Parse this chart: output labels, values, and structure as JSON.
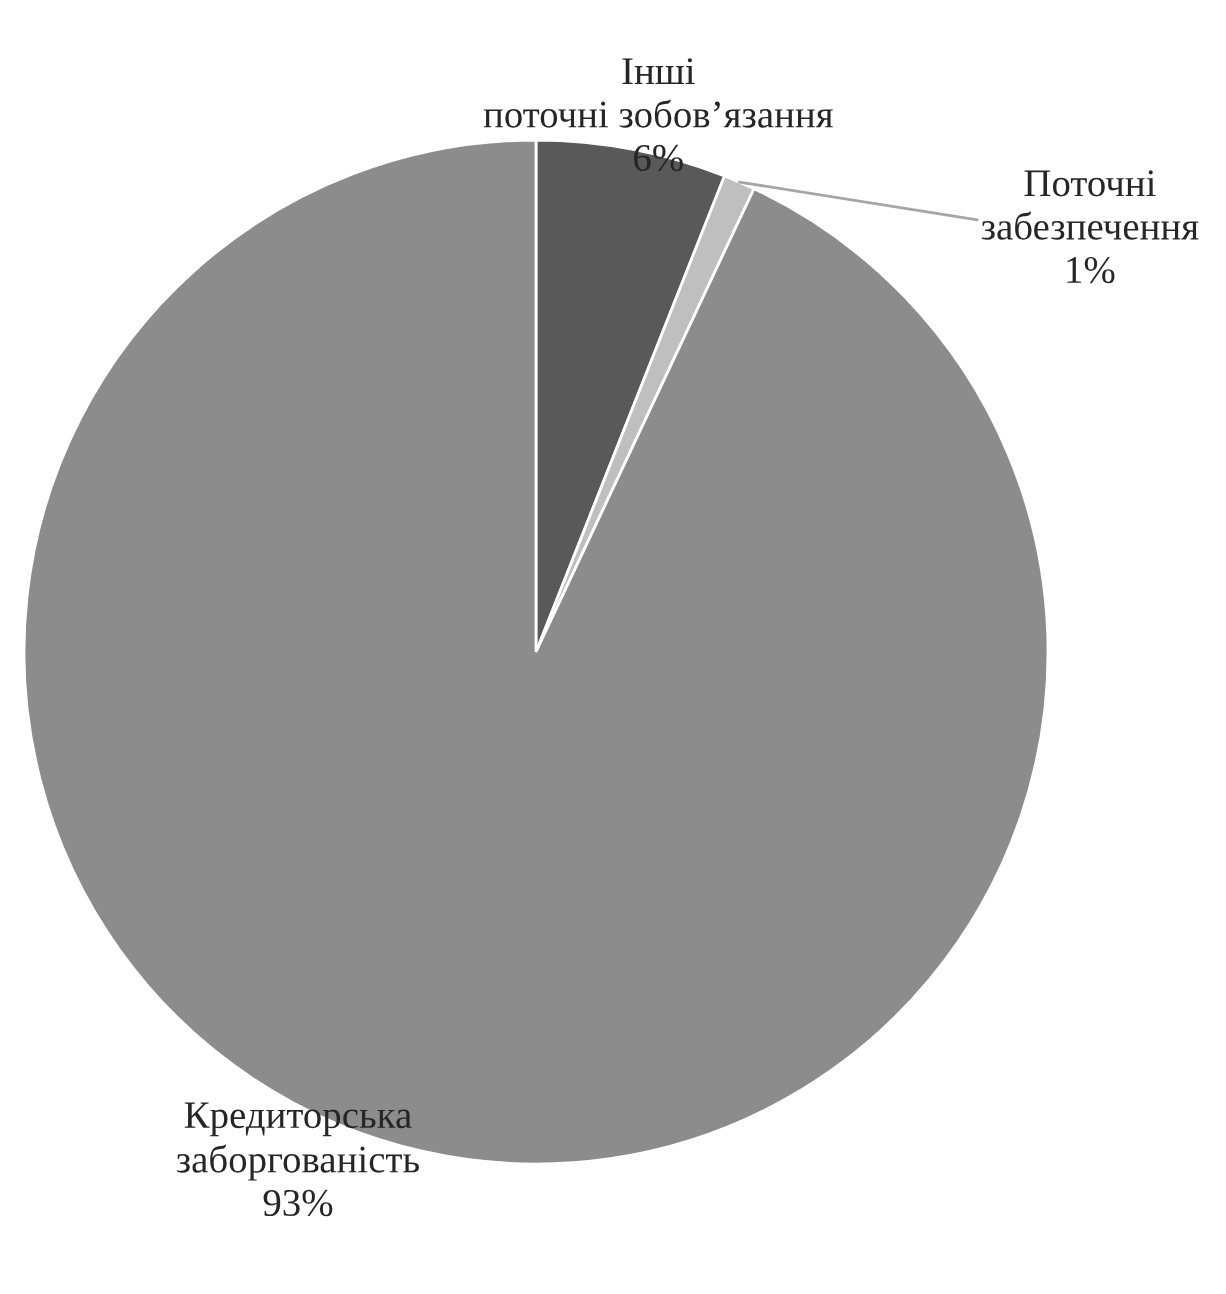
{
  "chart_data": {
    "type": "pie",
    "categories": [
      "Інші поточні зобов’язання",
      "Поточні забезпечення",
      "Кредиторська заборгованість"
    ],
    "values": [
      6,
      1,
      93
    ],
    "colors": [
      "#595959",
      "#bfbfbf",
      "#8c8c8c"
    ],
    "value_labels": [
      "6%",
      "1%",
      "93%"
    ],
    "legend": false
  }
}
